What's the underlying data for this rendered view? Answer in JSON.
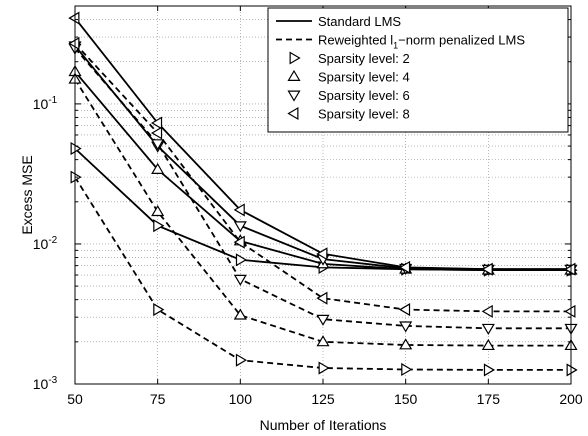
{
  "chart_data": {
    "type": "line",
    "xlabel": "Number of Iterations",
    "ylabel": "Excess MSE",
    "y_scale": "log",
    "x": [
      50,
      75,
      100,
      125,
      150,
      175,
      200
    ],
    "xlim": [
      50,
      200
    ],
    "ylim": [
      0.001,
      0.5
    ],
    "x_ticks": [
      "50",
      "75",
      "100",
      "125",
      "150",
      "175",
      "200"
    ],
    "y_tick_exponents": [
      "-3",
      "-2",
      "-1"
    ],
    "y_tick_base": "10",
    "grid": true,
    "legend_position": "top-right",
    "legend": {
      "line_entries": [
        {
          "label": "Standard LMS",
          "dash": "solid"
        },
        {
          "label_pre": "Reweighted l",
          "label_sub": "1",
          "label_post": "−norm penalized LMS",
          "dash": "dashed"
        }
      ],
      "marker_entries": [
        {
          "label": "Sparsity level: 2",
          "marker": "triangle-right"
        },
        {
          "label": "Sparsity level: 4",
          "marker": "triangle-up"
        },
        {
          "label": "Sparsity level: 6",
          "marker": "triangle-down"
        },
        {
          "label": "Sparsity level: 8",
          "marker": "triangle-left"
        }
      ]
    },
    "series": [
      {
        "algorithm": "standard",
        "sparsity": 2,
        "marker": "triangle-right",
        "dash": "solid",
        "values": [
          0.048,
          0.0135,
          0.0077,
          0.0068,
          0.0066,
          0.0065,
          0.0065
        ]
      },
      {
        "algorithm": "standard",
        "sparsity": 4,
        "marker": "triangle-up",
        "dash": "solid",
        "values": [
          0.17,
          0.034,
          0.0105,
          0.0072,
          0.0066,
          0.0065,
          0.0065
        ]
      },
      {
        "algorithm": "standard",
        "sparsity": 6,
        "marker": "triangle-down",
        "dash": "solid",
        "values": [
          0.26,
          0.05,
          0.0135,
          0.0078,
          0.0067,
          0.0066,
          0.0066
        ]
      },
      {
        "algorithm": "standard",
        "sparsity": 8,
        "marker": "triangle-left",
        "dash": "solid",
        "values": [
          0.41,
          0.073,
          0.0175,
          0.0085,
          0.0068,
          0.0066,
          0.0066
        ]
      },
      {
        "algorithm": "reweighted",
        "sparsity": 2,
        "marker": "triangle-right",
        "dash": "dashed",
        "values": [
          0.03,
          0.0034,
          0.00148,
          0.0013,
          0.00127,
          0.00126,
          0.00126
        ]
      },
      {
        "algorithm": "reweighted",
        "sparsity": 4,
        "marker": "triangle-up",
        "dash": "dashed",
        "values": [
          0.15,
          0.017,
          0.0031,
          0.002,
          0.0019,
          0.00188,
          0.00188
        ]
      },
      {
        "algorithm": "reweighted",
        "sparsity": 6,
        "marker": "triangle-down",
        "dash": "dashed",
        "values": [
          0.25,
          0.052,
          0.0056,
          0.0029,
          0.0026,
          0.0025,
          0.0025
        ]
      },
      {
        "algorithm": "reweighted",
        "sparsity": 8,
        "marker": "triangle-left",
        "dash": "dashed",
        "values": [
          0.27,
          0.062,
          0.0103,
          0.0041,
          0.0034,
          0.0033,
          0.0033
        ]
      }
    ]
  }
}
